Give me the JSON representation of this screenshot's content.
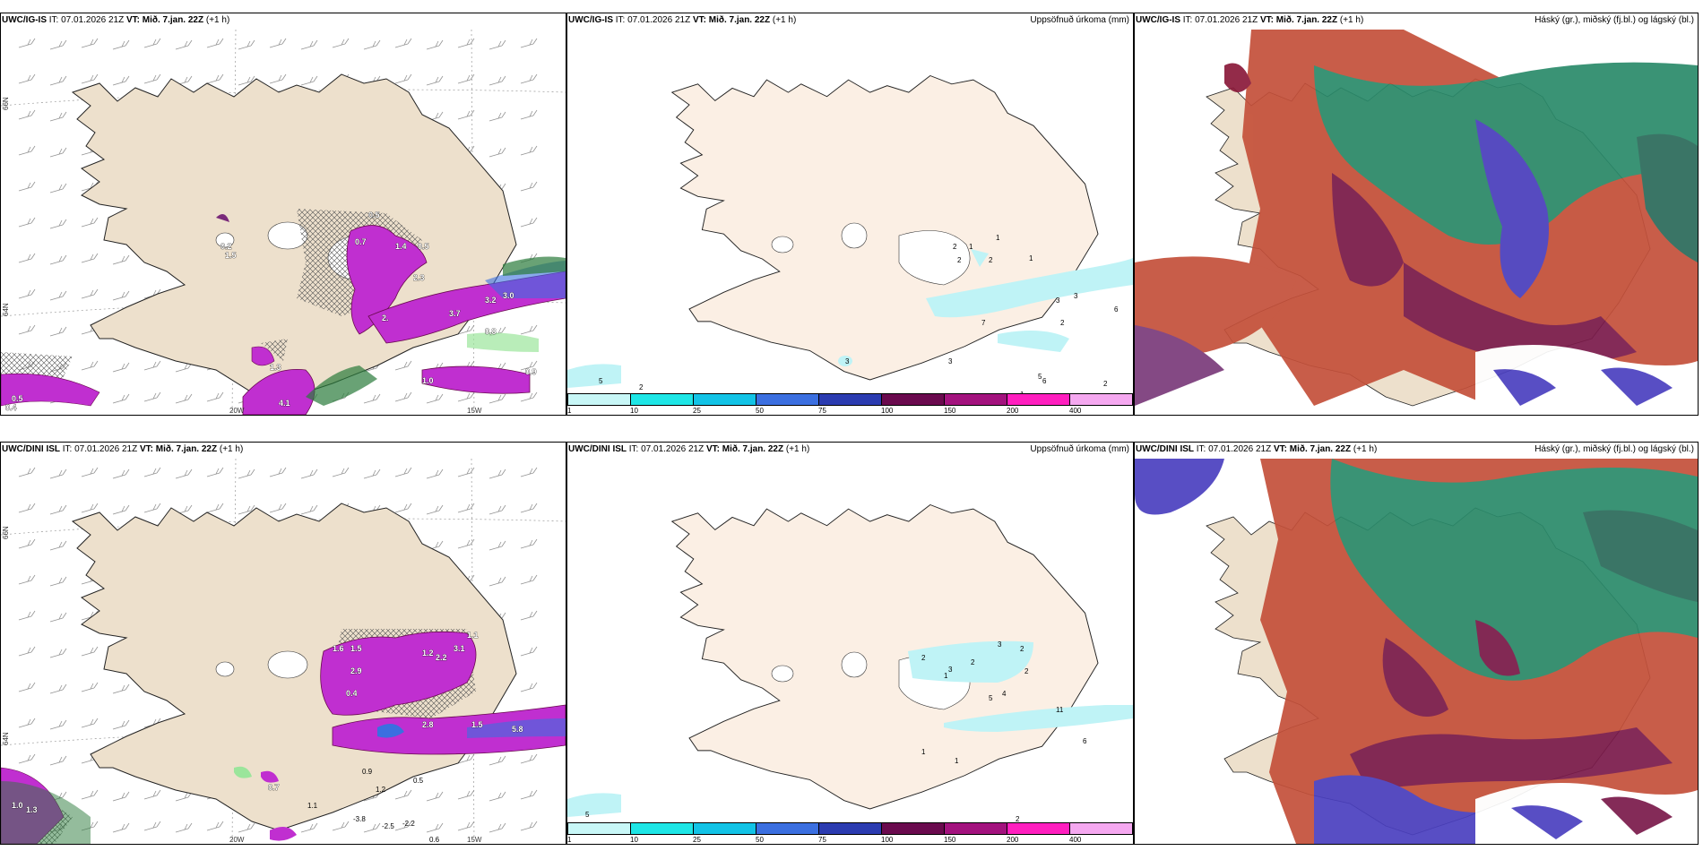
{
  "panels": [
    {
      "id": "p1",
      "model": "UWC/IG-IS",
      "it_label": "IT:",
      "it": "07.01.2026 21Z",
      "vt_label": "VT:",
      "vt": "Mið. 7.jan. 22Z",
      "offset": "(+1 h)",
      "right_title": ""
    },
    {
      "id": "p2",
      "model": "UWC/IG-IS",
      "it_label": "IT:",
      "it": "07.01.2026 21Z",
      "vt_label": "VT:",
      "vt": "Mið. 7.jan. 22Z",
      "offset": "(+1 h)",
      "right_title": "Uppsöfnuð úrkoma (mm)"
    },
    {
      "id": "p3",
      "model": "UWC/IG-IS",
      "it_label": "IT:",
      "it": "07.01.2026 21Z",
      "vt_label": "VT:",
      "vt": "Mið. 7.jan. 22Z",
      "offset": "(+1 h)",
      "right_title": "Háský (gr.), miðský (fj.bl.) og lágský (bl.)"
    },
    {
      "id": "p4",
      "model": "UWC/DINI ISL",
      "it_label": "IT:",
      "it": "07.01.2026 21Z",
      "vt_label": "VT:",
      "vt": "Mið. 7.jan. 22Z",
      "offset": "(+1 h)",
      "right_title": ""
    },
    {
      "id": "p5",
      "model": "UWC/DINI ISL",
      "it_label": "IT:",
      "it": "07.01.2026 21Z",
      "vt_label": "VT:",
      "vt": "Mið. 7.jan. 22Z",
      "offset": "(+1 h)",
      "right_title": "Uppsöfnuð úrkoma (mm)"
    },
    {
      "id": "p6",
      "model": "UWC/DINI ISL",
      "it_label": "IT:",
      "it": "07.01.2026 21Z",
      "vt_label": "VT:",
      "vt": "Mið. 7.jan. 22Z",
      "offset": "(+1 h)",
      "right_title": "Háský (gr.), miðský (fj.bl.) og lágský (bl.)"
    }
  ],
  "axes": {
    "lon_20w": "20W",
    "lon_15w": "15W",
    "lat_66n": "66N",
    "lat_64n": "64N"
  },
  "precip_scale": {
    "labels": [
      "1",
      "10",
      "25",
      "50",
      "75",
      "100",
      "150",
      "200",
      "400"
    ],
    "colors": [
      "#c8f7f7",
      "#1ee6e6",
      "#12c3e6",
      "#3b6fe0",
      "#2b3bb0",
      "#6a0a4e",
      "#a3127e",
      "#ff1fbf",
      "#f5a8f0"
    ]
  },
  "colors": {
    "land": "#ede0cc",
    "land_precip": "#fbefe4",
    "coast": "#222222",
    "cloud_high": "#2a8a6a",
    "cloud_mid": "#c4503a",
    "cloud_low": "#4a3fbf",
    "magenta": "#c02fd0",
    "cyan": "#bff3f6"
  },
  "p1_values": [
    "0.5",
    "0.7",
    "1.4",
    "0.5",
    "2.3",
    "2.",
    "3.7",
    "3.2",
    "3.0",
    "0.8",
    "1.3",
    "1.0",
    "4.1",
    "0.9",
    "0.4",
    "0.5",
    "1.5",
    "0.2"
  ],
  "p2_values": [
    "2",
    "1",
    "1",
    "2",
    "1",
    "3",
    "3",
    "2",
    "6",
    "7",
    "5",
    "3",
    "3",
    "6",
    "2",
    "2",
    "5",
    "2",
    "1"
  ],
  "p4_values": [
    "1.6",
    "2.9",
    "1.5",
    "1.2",
    "2.2",
    "3.1",
    "1.1",
    "0.4",
    "2.8",
    "1.5",
    "5.8",
    "0.7",
    "1.1",
    "0.9",
    "1.2",
    "0.5",
    "-3.8",
    "-2.5",
    "-2.2",
    "0.6",
    "1.0",
    "1.3"
  ],
  "p5_values": [
    "2",
    "3",
    "2",
    "3",
    "2",
    "2",
    "1",
    "5",
    "4",
    "11",
    "6",
    "5",
    "1",
    "1",
    "2"
  ]
}
